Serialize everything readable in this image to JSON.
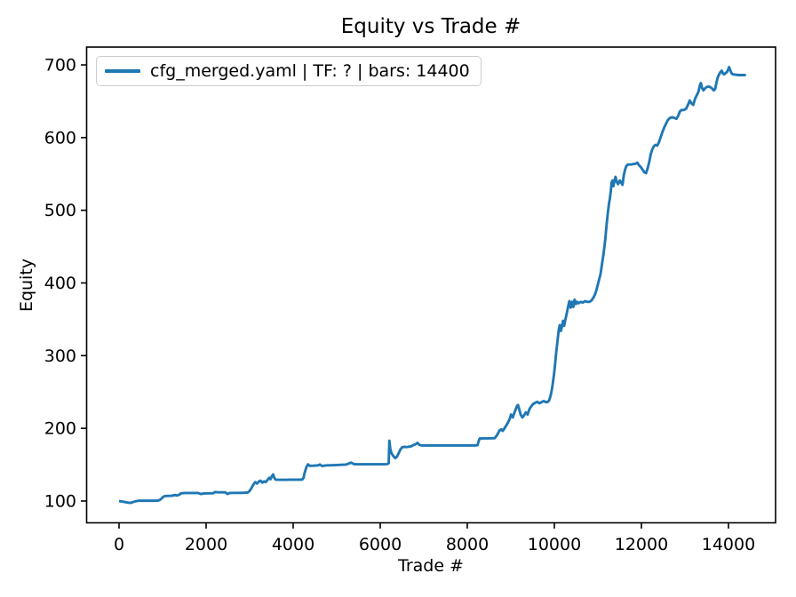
{
  "chart_data": {
    "type": "line",
    "title": "Equity vs Trade #",
    "xlabel": "Trade #",
    "ylabel": "Equity",
    "grid": false,
    "legend_position": "upper left",
    "xlim": [
      -745,
      15082
    ],
    "ylim": [
      70,
      724.5
    ],
    "x_ticks": [
      0,
      2000,
      4000,
      6000,
      8000,
      10000,
      12000,
      14000
    ],
    "y_ticks": [
      100,
      200,
      300,
      400,
      500,
      600,
      700
    ],
    "axis_color": "#000000",
    "series": [
      {
        "name": "cfg_merged.yaml | TF: ? | bars: 14400",
        "color": "#1f77b4",
        "points": [
          [
            0,
            100
          ],
          [
            40,
            99.6
          ],
          [
            80,
            99.2
          ],
          [
            130,
            98.6
          ],
          [
            180,
            98
          ],
          [
            230,
            97.6
          ],
          [
            280,
            97.6
          ],
          [
            320,
            98.6
          ],
          [
            380,
            99.6
          ],
          [
            450,
            100.4
          ],
          [
            560,
            100.4
          ],
          [
            670,
            100.4
          ],
          [
            780,
            100.4
          ],
          [
            880,
            100.5
          ],
          [
            930,
            101.2
          ],
          [
            970,
            103
          ],
          [
            1010,
            105.5
          ],
          [
            1050,
            106.8
          ],
          [
            1130,
            107
          ],
          [
            1210,
            107.2
          ],
          [
            1280,
            108.3
          ],
          [
            1330,
            107.6
          ],
          [
            1390,
            108.8
          ],
          [
            1420,
            110.6
          ],
          [
            1510,
            111
          ],
          [
            1620,
            111
          ],
          [
            1730,
            111
          ],
          [
            1820,
            111
          ],
          [
            1880,
            109.6
          ],
          [
            1950,
            110.4
          ],
          [
            2060,
            110.5
          ],
          [
            2160,
            110.7
          ],
          [
            2210,
            112.4
          ],
          [
            2270,
            112
          ],
          [
            2370,
            112
          ],
          [
            2440,
            112
          ],
          [
            2490,
            109.7
          ],
          [
            2540,
            111
          ],
          [
            2660,
            111.2
          ],
          [
            2780,
            111.2
          ],
          [
            2890,
            111.4
          ],
          [
            2960,
            111.7
          ],
          [
            3000,
            114
          ],
          [
            3040,
            117.5
          ],
          [
            3070,
            121
          ],
          [
            3100,
            124
          ],
          [
            3130,
            126
          ],
          [
            3170,
            124
          ],
          [
            3210,
            126.8
          ],
          [
            3250,
            128
          ],
          [
            3290,
            125.2
          ],
          [
            3330,
            127
          ],
          [
            3370,
            126
          ],
          [
            3410,
            129
          ],
          [
            3450,
            132
          ],
          [
            3480,
            130
          ],
          [
            3510,
            134
          ],
          [
            3540,
            136.5
          ],
          [
            3570,
            131.5
          ],
          [
            3600,
            129.3
          ],
          [
            3710,
            129.2
          ],
          [
            3820,
            129.2
          ],
          [
            3930,
            129.3
          ],
          [
            4040,
            129.3
          ],
          [
            4150,
            129.4
          ],
          [
            4210,
            129.6
          ],
          [
            4240,
            132
          ],
          [
            4260,
            138
          ],
          [
            4285,
            143
          ],
          [
            4310,
            147.5
          ],
          [
            4340,
            150.5
          ],
          [
            4375,
            148.5
          ],
          [
            4470,
            148.6
          ],
          [
            4570,
            149
          ],
          [
            4615,
            150.2
          ],
          [
            4660,
            148.2
          ],
          [
            4770,
            149
          ],
          [
            4880,
            149.2
          ],
          [
            4990,
            149.5
          ],
          [
            5100,
            149.8
          ],
          [
            5210,
            150.1
          ],
          [
            5330,
            152.8
          ],
          [
            5405,
            150.6
          ],
          [
            5530,
            150.6
          ],
          [
            5660,
            150.6
          ],
          [
            5790,
            150.6
          ],
          [
            5920,
            150.6
          ],
          [
            6050,
            150.6
          ],
          [
            6160,
            150.8
          ],
          [
            6195,
            152
          ],
          [
            6210,
            183
          ],
          [
            6230,
            172
          ],
          [
            6260,
            165.5
          ],
          [
            6300,
            162
          ],
          [
            6345,
            159
          ],
          [
            6385,
            161
          ],
          [
            6425,
            166
          ],
          [
            6465,
            171
          ],
          [
            6505,
            174
          ],
          [
            6560,
            174.6
          ],
          [
            6610,
            174.2
          ],
          [
            6660,
            174.8
          ],
          [
            6710,
            175.2
          ],
          [
            6760,
            177
          ],
          [
            6810,
            178
          ],
          [
            6855,
            180
          ],
          [
            6895,
            177.5
          ],
          [
            6945,
            176.4
          ],
          [
            7060,
            176.4
          ],
          [
            7180,
            176.4
          ],
          [
            7300,
            176.4
          ],
          [
            7420,
            176.4
          ],
          [
            7540,
            176.4
          ],
          [
            7660,
            176.4
          ],
          [
            7780,
            176.4
          ],
          [
            7900,
            176.4
          ],
          [
            8020,
            176.4
          ],
          [
            8140,
            176.4
          ],
          [
            8235,
            176.8
          ],
          [
            8260,
            182
          ],
          [
            8285,
            186
          ],
          [
            8400,
            186.2
          ],
          [
            8520,
            186.2
          ],
          [
            8630,
            186.5
          ],
          [
            8670,
            189.5
          ],
          [
            8710,
            193.5
          ],
          [
            8745,
            197.5
          ],
          [
            8785,
            198.5
          ],
          [
            8815,
            196.5
          ],
          [
            8855,
            200
          ],
          [
            8895,
            204
          ],
          [
            8935,
            208
          ],
          [
            8975,
            213
          ],
          [
            9005,
            219
          ],
          [
            9045,
            215
          ],
          [
            9085,
            222
          ],
          [
            9115,
            226.5
          ],
          [
            9145,
            231
          ],
          [
            9165,
            232
          ],
          [
            9195,
            226
          ],
          [
            9225,
            219
          ],
          [
            9265,
            215
          ],
          [
            9305,
            218
          ],
          [
            9345,
            222
          ],
          [
            9385,
            219
          ],
          [
            9425,
            226
          ],
          [
            9465,
            230
          ],
          [
            9505,
            233
          ],
          [
            9555,
            235
          ],
          [
            9605,
            236.5
          ],
          [
            9655,
            234.5
          ],
          [
            9705,
            236
          ],
          [
            9755,
            237.5
          ],
          [
            9805,
            236
          ],
          [
            9855,
            236.5
          ],
          [
            9885,
            239
          ],
          [
            9905,
            243
          ],
          [
            9925,
            248
          ],
          [
            9945,
            254
          ],
          [
            9965,
            262
          ],
          [
            9985,
            271
          ],
          [
            10005,
            281
          ],
          [
            10025,
            293
          ],
          [
            10045,
            306
          ],
          [
            10065,
            316
          ],
          [
            10085,
            327
          ],
          [
            10105,
            337
          ],
          [
            10125,
            342
          ],
          [
            10150,
            334
          ],
          [
            10175,
            340
          ],
          [
            10200,
            348
          ],
          [
            10225,
            341
          ],
          [
            10255,
            350
          ],
          [
            10285,
            358
          ],
          [
            10315,
            367
          ],
          [
            10345,
            375
          ],
          [
            10375,
            366
          ],
          [
            10405,
            374
          ],
          [
            10435,
            367
          ],
          [
            10465,
            377
          ],
          [
            10495,
            371
          ],
          [
            10525,
            374
          ],
          [
            10555,
            372
          ],
          [
            10605,
            374
          ],
          [
            10655,
            373
          ],
          [
            10705,
            375
          ],
          [
            10755,
            374
          ],
          [
            10805,
            374
          ],
          [
            10855,
            376
          ],
          [
            10900,
            380
          ],
          [
            10940,
            385
          ],
          [
            10970,
            391
          ],
          [
            11000,
            398
          ],
          [
            11030,
            405
          ],
          [
            11060,
            412
          ],
          [
            11090,
            424
          ],
          [
            11130,
            440
          ],
          [
            11170,
            460
          ],
          [
            11200,
            480
          ],
          [
            11230,
            497
          ],
          [
            11255,
            509
          ],
          [
            11275,
            516
          ],
          [
            11295,
            525
          ],
          [
            11315,
            538
          ],
          [
            11335,
            541
          ],
          [
            11355,
            533
          ],
          [
            11380,
            540
          ],
          [
            11405,
            546
          ],
          [
            11435,
            539
          ],
          [
            11465,
            536
          ],
          [
            11505,
            541
          ],
          [
            11535,
            538
          ],
          [
            11565,
            535
          ],
          [
            11595,
            548
          ],
          [
            11625,
            556
          ],
          [
            11655,
            561
          ],
          [
            11690,
            563
          ],
          [
            11750,
            563
          ],
          [
            11810,
            563.5
          ],
          [
            11870,
            564
          ],
          [
            11905,
            565.5
          ],
          [
            11945,
            562
          ],
          [
            11985,
            559.5
          ],
          [
            12025,
            556
          ],
          [
            12065,
            552.5
          ],
          [
            12105,
            551
          ],
          [
            12145,
            558
          ],
          [
            12185,
            568
          ],
          [
            12215,
            577
          ],
          [
            12245,
            583
          ],
          [
            12285,
            588
          ],
          [
            12325,
            590
          ],
          [
            12365,
            589
          ],
          [
            12405,
            594
          ],
          [
            12445,
            601
          ],
          [
            12485,
            608
          ],
          [
            12525,
            614
          ],
          [
            12565,
            619
          ],
          [
            12605,
            624
          ],
          [
            12655,
            627
          ],
          [
            12705,
            628
          ],
          [
            12755,
            627
          ],
          [
            12805,
            626
          ],
          [
            12845,
            630
          ],
          [
            12885,
            636
          ],
          [
            12925,
            638
          ],
          [
            12980,
            638
          ],
          [
            13030,
            640
          ],
          [
            13070,
            645
          ],
          [
            13110,
            651
          ],
          [
            13150,
            647
          ],
          [
            13190,
            645
          ],
          [
            13230,
            653
          ],
          [
            13270,
            658
          ],
          [
            13310,
            663
          ],
          [
            13345,
            672
          ],
          [
            13365,
            675
          ],
          [
            13395,
            668
          ],
          [
            13425,
            665
          ],
          [
            13465,
            668
          ],
          [
            13515,
            670
          ],
          [
            13565,
            670
          ],
          [
            13615,
            668
          ],
          [
            13665,
            665
          ],
          [
            13695,
            667
          ],
          [
            13725,
            676
          ],
          [
            13755,
            683
          ],
          [
            13785,
            687
          ],
          [
            13815,
            690
          ],
          [
            13845,
            692
          ],
          [
            13875,
            688
          ],
          [
            13905,
            687
          ],
          [
            13935,
            689
          ],
          [
            13965,
            690
          ],
          [
            13995,
            694
          ],
          [
            14015,
            697
          ],
          [
            14045,
            692
          ],
          [
            14075,
            688
          ],
          [
            14105,
            687
          ],
          [
            14165,
            686.5
          ],
          [
            14230,
            686
          ],
          [
            14300,
            686
          ],
          [
            14400,
            686
          ]
        ]
      }
    ]
  }
}
